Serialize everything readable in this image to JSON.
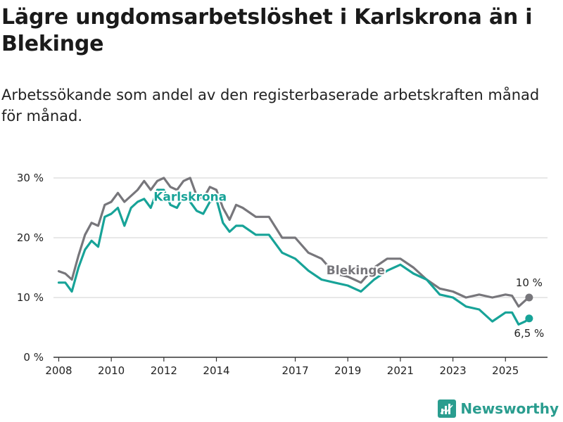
{
  "title": "Lägre ungdomsarbetslöshet i Karlskrona än i Blekinge",
  "subtitle": "Arbetssökande som andel av den registerbaserade arbetskraften månad för månad.",
  "brand": {
    "name": "Newsworthy",
    "icon": "bar-chart-logo-icon"
  },
  "colors": {
    "karlskrona": "#17a398",
    "blekinge": "#77767b",
    "grid": "#d9d9d9",
    "axis": "#333333"
  },
  "chart_data": {
    "type": "line",
    "title": "Lägre ungdomsarbetslöshet i Karlskrona än i Blekinge",
    "xlabel": "",
    "ylabel": "",
    "xlim": [
      2007.8,
      2026.6
    ],
    "ylim": [
      0,
      30
    ],
    "y_ticks": [
      0,
      10,
      20,
      30
    ],
    "y_tick_labels": [
      "0 %",
      "10 %",
      "20 %",
      "30 %"
    ],
    "x_ticks": [
      2008,
      2010,
      2012,
      2014,
      2017,
      2019,
      2021,
      2023,
      2025
    ],
    "x_tick_labels": [
      "2008",
      "2010",
      "2012",
      "2014",
      "2017",
      "2019",
      "2021",
      "2023",
      "2025"
    ],
    "grid": true,
    "series": [
      {
        "name": "Blekinge",
        "label": "Blekinge",
        "end_label": "10 %",
        "end_value": 10,
        "x": [
          2008.0,
          2008.25,
          2008.5,
          2008.75,
          2009.0,
          2009.25,
          2009.5,
          2009.75,
          2010.0,
          2010.25,
          2010.5,
          2010.75,
          2011.0,
          2011.25,
          2011.5,
          2011.75,
          2012.0,
          2012.25,
          2012.5,
          2012.75,
          2013.0,
          2013.25,
          2013.5,
          2013.75,
          2014.0,
          2014.25,
          2014.5,
          2014.75,
          2015.0,
          2015.5,
          2016.0,
          2016.5,
          2017.0,
          2017.5,
          2018.0,
          2018.5,
          2019.0,
          2019.5,
          2020.0,
          2020.5,
          2021.0,
          2021.5,
          2022.0,
          2022.5,
          2023.0,
          2023.5,
          2024.0,
          2024.5,
          2025.0,
          2025.25,
          2025.5,
          2025.75,
          2025.9
        ],
        "values": [
          14.4,
          14.0,
          13.0,
          17.0,
          20.5,
          22.5,
          22.0,
          25.5,
          26.0,
          27.5,
          26.0,
          27.0,
          28.0,
          29.5,
          28.0,
          29.5,
          30.0,
          28.5,
          28.0,
          29.5,
          30.0,
          27.0,
          26.5,
          28.5,
          28.0,
          25.0,
          23.0,
          25.5,
          25.0,
          23.5,
          23.5,
          20.0,
          20.0,
          17.5,
          16.5,
          14.0,
          13.5,
          12.5,
          15.0,
          16.5,
          16.5,
          15.0,
          13.0,
          11.5,
          11.0,
          10.0,
          10.5,
          10.0,
          10.5,
          10.3,
          8.5,
          9.5,
          10.0
        ]
      },
      {
        "name": "Karlskrona",
        "label": "Karlskrona",
        "end_label": "6,5 %",
        "end_value": 6.5,
        "x": [
          2008.0,
          2008.25,
          2008.5,
          2008.75,
          2009.0,
          2009.25,
          2009.5,
          2009.75,
          2010.0,
          2010.25,
          2010.5,
          2010.75,
          2011.0,
          2011.25,
          2011.5,
          2011.75,
          2012.0,
          2012.25,
          2012.5,
          2012.75,
          2013.0,
          2013.25,
          2013.5,
          2013.75,
          2014.0,
          2014.25,
          2014.5,
          2014.75,
          2015.0,
          2015.5,
          2016.0,
          2016.5,
          2017.0,
          2017.5,
          2018.0,
          2018.5,
          2019.0,
          2019.5,
          2020.0,
          2020.5,
          2021.0,
          2021.5,
          2022.0,
          2022.5,
          2023.0,
          2023.5,
          2024.0,
          2024.5,
          2025.0,
          2025.25,
          2025.5,
          2025.75,
          2025.9
        ],
        "values": [
          12.5,
          12.5,
          11.0,
          15.0,
          18.0,
          19.5,
          18.5,
          23.5,
          24.0,
          25.0,
          22.0,
          25.0,
          26.0,
          26.5,
          25.0,
          28.0,
          28.0,
          25.5,
          25.0,
          27.0,
          26.0,
          24.5,
          24.0,
          26.0,
          26.5,
          22.5,
          21.0,
          22.0,
          22.0,
          20.5,
          20.5,
          17.5,
          16.5,
          14.5,
          13.0,
          12.5,
          12.0,
          11.0,
          13.0,
          14.5,
          15.5,
          14.0,
          13.0,
          10.5,
          10.0,
          8.5,
          8.0,
          6.0,
          7.5,
          7.5,
          5.5,
          6.0,
          6.5
        ]
      }
    ]
  }
}
